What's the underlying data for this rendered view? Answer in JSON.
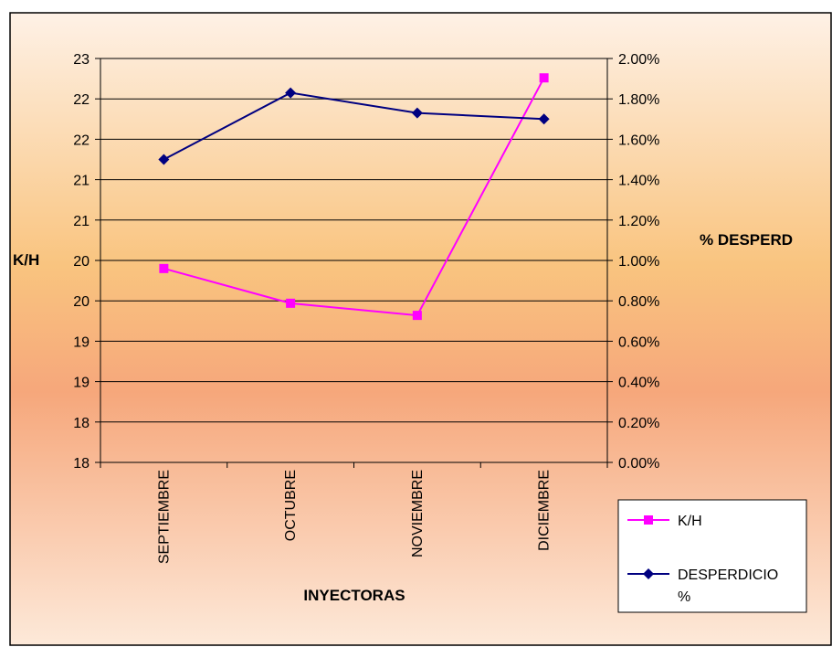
{
  "chart_data": {
    "type": "line",
    "categories": [
      "SEPTIEMBRE",
      "OCTUBRE",
      "NOVIEMBRE",
      "DICIEMBRE"
    ],
    "xlabel": "INYECTORAS",
    "ylabel": "K/H",
    "y2label": "% DESPERD",
    "y_ticks": [
      "18",
      "18",
      "19",
      "19",
      "20",
      "20",
      "21",
      "21",
      "22",
      "22",
      "23"
    ],
    "y2_ticks": [
      "0.00%",
      "0.20%",
      "0.40%",
      "0.60%",
      "0.80%",
      "1.00%",
      "1.20%",
      "1.40%",
      "1.60%",
      "1.80%",
      "2.00%"
    ],
    "ylim": [
      18,
      23
    ],
    "y2lim": [
      0,
      0.02
    ],
    "series": [
      {
        "name": "K/H",
        "axis": "left",
        "values": [
          20.4,
          19.97,
          19.82,
          22.76
        ],
        "color": "#ff00ff",
        "marker": "square"
      },
      {
        "name": "DESPERDICIO %",
        "axis": "right",
        "values": [
          0.015,
          0.0183,
          0.0173,
          0.017
        ],
        "color": "#000080",
        "marker": "diamond"
      }
    ],
    "grid": true,
    "legend_position": "bottom-right"
  },
  "legend": {
    "items": [
      {
        "label_lines": [
          "K/H"
        ]
      },
      {
        "label_lines": [
          "DESPERDICIO",
          "%"
        ]
      }
    ]
  },
  "colors": {
    "background_top": "#fef1e6",
    "background_mid": "#f9c47f",
    "background_low": "#f6a77b",
    "background_bottom": "#fde9d9"
  }
}
